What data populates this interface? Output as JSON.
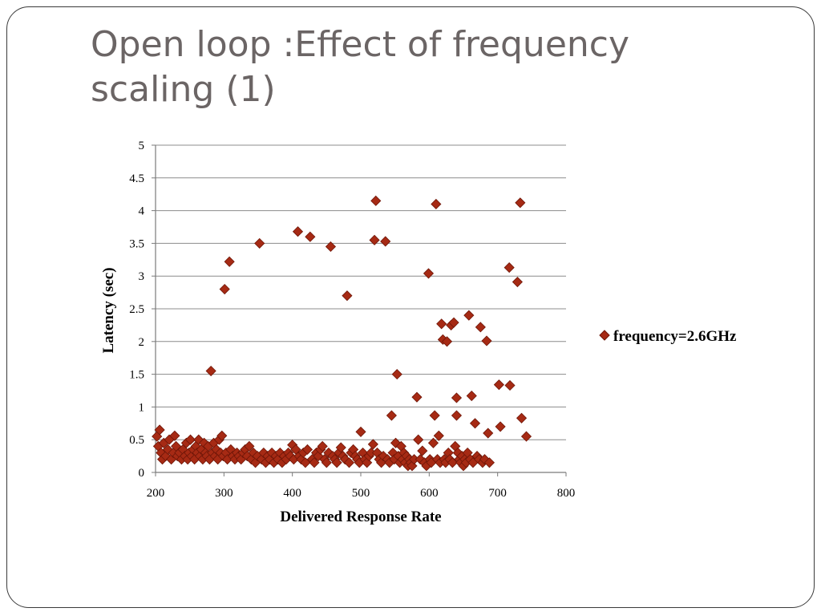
{
  "slide": {
    "title": "Open loop :Effect of frequency scaling (1)"
  },
  "colors": {
    "marker_fill": "#a62a14",
    "marker_stroke": "#6e1608",
    "gridline": "#8c8c8c",
    "title": "#6b6565"
  },
  "chart_data": {
    "type": "scatter",
    "xlabel": "Delivered Response Rate",
    "ylabel": "Latency (sec)",
    "xlim": [
      200,
      800
    ],
    "ylim": [
      0,
      5
    ],
    "xticks": [
      "200",
      "300",
      "400",
      "500",
      "600",
      "700",
      "800"
    ],
    "yticks": [
      "0",
      "0.5",
      "1",
      "1.5",
      "2",
      "2.5",
      "3",
      "3.5",
      "4",
      "4.5",
      "5"
    ],
    "grid": "horizontal",
    "legend_position": "right",
    "marker": "diamond",
    "series": [
      {
        "name": "frequency=2.6GHz",
        "points": [
          [
            202,
            0.55
          ],
          [
            204,
            0.4
          ],
          [
            206,
            0.65
          ],
          [
            208,
            0.3
          ],
          [
            210,
            0.2
          ],
          [
            212,
            0.45
          ],
          [
            215,
            0.25
          ],
          [
            218,
            0.35
          ],
          [
            220,
            0.5
          ],
          [
            223,
            0.2
          ],
          [
            226,
            0.3
          ],
          [
            228,
            0.56
          ],
          [
            230,
            0.4
          ],
          [
            232,
            0.25
          ],
          [
            235,
            0.3
          ],
          [
            238,
            0.2
          ],
          [
            240,
            0.35
          ],
          [
            243,
            0.25
          ],
          [
            245,
            0.45
          ],
          [
            247,
            0.2
          ],
          [
            249,
            0.3
          ],
          [
            251,
            0.5
          ],
          [
            253,
            0.25
          ],
          [
            255,
            0.35
          ],
          [
            257,
            0.2
          ],
          [
            259,
            0.4
          ],
          [
            261,
            0.3
          ],
          [
            263,
            0.5
          ],
          [
            265,
            0.25
          ],
          [
            267,
            0.35
          ],
          [
            269,
            0.2
          ],
          [
            271,
            0.45
          ],
          [
            273,
            0.3
          ],
          [
            275,
            0.25
          ],
          [
            277,
            0.4
          ],
          [
            279,
            0.2
          ],
          [
            281,
            1.55
          ],
          [
            283,
            0.3
          ],
          [
            285,
            0.45
          ],
          [
            287,
            0.25
          ],
          [
            289,
            0.35
          ],
          [
            291,
            0.2
          ],
          [
            293,
            0.5
          ],
          [
            295,
            0.3
          ],
          [
            297,
            0.56
          ],
          [
            299,
            0.25
          ],
          [
            301,
            2.8
          ],
          [
            303,
            0.3
          ],
          [
            305,
            0.2
          ],
          [
            308,
            3.22
          ],
          [
            310,
            0.35
          ],
          [
            313,
            0.25
          ],
          [
            316,
            0.2
          ],
          [
            319,
            0.3
          ],
          [
            322,
            0.25
          ],
          [
            325,
            0.2
          ],
          [
            328,
            0.3
          ],
          [
            331,
            0.35
          ],
          [
            334,
            0.25
          ],
          [
            337,
            0.4
          ],
          [
            340,
            0.2
          ],
          [
            343,
            0.3
          ],
          [
            346,
            0.15
          ],
          [
            349,
            0.25
          ],
          [
            352,
            3.5
          ],
          [
            355,
            0.2
          ],
          [
            358,
            0.3
          ],
          [
            361,
            0.15
          ],
          [
            364,
            0.25
          ],
          [
            367,
            0.2
          ],
          [
            370,
            0.3
          ],
          [
            373,
            0.15
          ],
          [
            376,
            0.25
          ],
          [
            379,
            0.2
          ],
          [
            382,
            0.3
          ],
          [
            385,
            0.15
          ],
          [
            388,
            0.25
          ],
          [
            391,
            0.2
          ],
          [
            394,
            0.3
          ],
          [
            397,
            0.25
          ],
          [
            400,
            0.42
          ],
          [
            402,
            0.2
          ],
          [
            405,
            0.35
          ],
          [
            408,
            3.68
          ],
          [
            410,
            0.25
          ],
          [
            413,
            0.2
          ],
          [
            416,
            0.3
          ],
          [
            419,
            0.15
          ],
          [
            422,
            0.35
          ],
          [
            426,
            3.6
          ],
          [
            429,
            0.2
          ],
          [
            432,
            0.15
          ],
          [
            435,
            0.3
          ],
          [
            438,
            0.25
          ],
          [
            441,
            0.35
          ],
          [
            444,
            0.4
          ],
          [
            447,
            0.2
          ],
          [
            450,
            0.15
          ],
          [
            453,
            0.3
          ],
          [
            456,
            3.45
          ],
          [
            459,
            0.25
          ],
          [
            462,
            0.2
          ],
          [
            465,
            0.15
          ],
          [
            468,
            0.3
          ],
          [
            471,
            0.38
          ],
          [
            474,
            0.25
          ],
          [
            477,
            0.2
          ],
          [
            480,
            2.7
          ],
          [
            483,
            0.15
          ],
          [
            486,
            0.3
          ],
          [
            489,
            0.35
          ],
          [
            492,
            0.25
          ],
          [
            495,
            0.2
          ],
          [
            498,
            0.15
          ],
          [
            500,
            0.62
          ],
          [
            503,
            0.3
          ],
          [
            506,
            0.2
          ],
          [
            509,
            0.15
          ],
          [
            512,
            0.25
          ],
          [
            515,
            0.3
          ],
          [
            518,
            0.43
          ],
          [
            520,
            3.55
          ],
          [
            522,
            4.15
          ],
          [
            524,
            0.3
          ],
          [
            527,
            0.2
          ],
          [
            530,
            0.15
          ],
          [
            533,
            0.25
          ],
          [
            536,
            3.53
          ],
          [
            539,
            0.2
          ],
          [
            542,
            0.15
          ],
          [
            545,
            0.87
          ],
          [
            547,
            0.3
          ],
          [
            549,
            0.2
          ],
          [
            551,
            0.45
          ],
          [
            553,
            1.5
          ],
          [
            555,
            0.25
          ],
          [
            557,
            0.15
          ],
          [
            559,
            0.4
          ],
          [
            561,
            0.2
          ],
          [
            563,
            0.3
          ],
          [
            565,
            0.15
          ],
          [
            567,
            0.25
          ],
          [
            569,
            0.1
          ],
          [
            571,
            0.2
          ],
          [
            573,
            0.15
          ],
          [
            575,
            0.1
          ],
          [
            578,
            0.2
          ],
          [
            582,
            1.15
          ],
          [
            584,
            0.5
          ],
          [
            587,
            0.2
          ],
          [
            590,
            0.33
          ],
          [
            593,
            0.15
          ],
          [
            596,
            0.1
          ],
          [
            599,
            3.04
          ],
          [
            601,
            0.2
          ],
          [
            603,
            0.15
          ],
          [
            606,
            0.45
          ],
          [
            608,
            0.87
          ],
          [
            610,
            4.1
          ],
          [
            612,
            0.2
          ],
          [
            614,
            0.56
          ],
          [
            616,
            0.15
          ],
          [
            618,
            2.27
          ],
          [
            620,
            2.03
          ],
          [
            622,
            0.2
          ],
          [
            624,
            0.15
          ],
          [
            626,
            2.0
          ],
          [
            628,
            0.3
          ],
          [
            630,
            0.2
          ],
          [
            632,
            2.25
          ],
          [
            634,
            0.15
          ],
          [
            636,
            2.29
          ],
          [
            638,
            0.4
          ],
          [
            640,
            1.14
          ],
          [
            640,
            0.87
          ],
          [
            642,
            0.3
          ],
          [
            644,
            0.2
          ],
          [
            646,
            0.15
          ],
          [
            648,
            0.25
          ],
          [
            650,
            0.1
          ],
          [
            652,
            0.2
          ],
          [
            654,
            0.15
          ],
          [
            656,
            0.3
          ],
          [
            658,
            2.4
          ],
          [
            660,
            0.2
          ],
          [
            662,
            1.17
          ],
          [
            664,
            0.15
          ],
          [
            667,
            0.75
          ],
          [
            670,
            0.25
          ],
          [
            673,
            0.2
          ],
          [
            675,
            2.22
          ],
          [
            678,
            0.15
          ],
          [
            681,
            0.2
          ],
          [
            684,
            2.01
          ],
          [
            686,
            0.6
          ],
          [
            688,
            0.15
          ],
          [
            702,
            1.34
          ],
          [
            704,
            0.7
          ],
          [
            717,
            3.13
          ],
          [
            718,
            1.33
          ],
          [
            729,
            2.91
          ],
          [
            733,
            4.12
          ],
          [
            735,
            0.83
          ],
          [
            742,
            0.55
          ]
        ]
      }
    ]
  }
}
